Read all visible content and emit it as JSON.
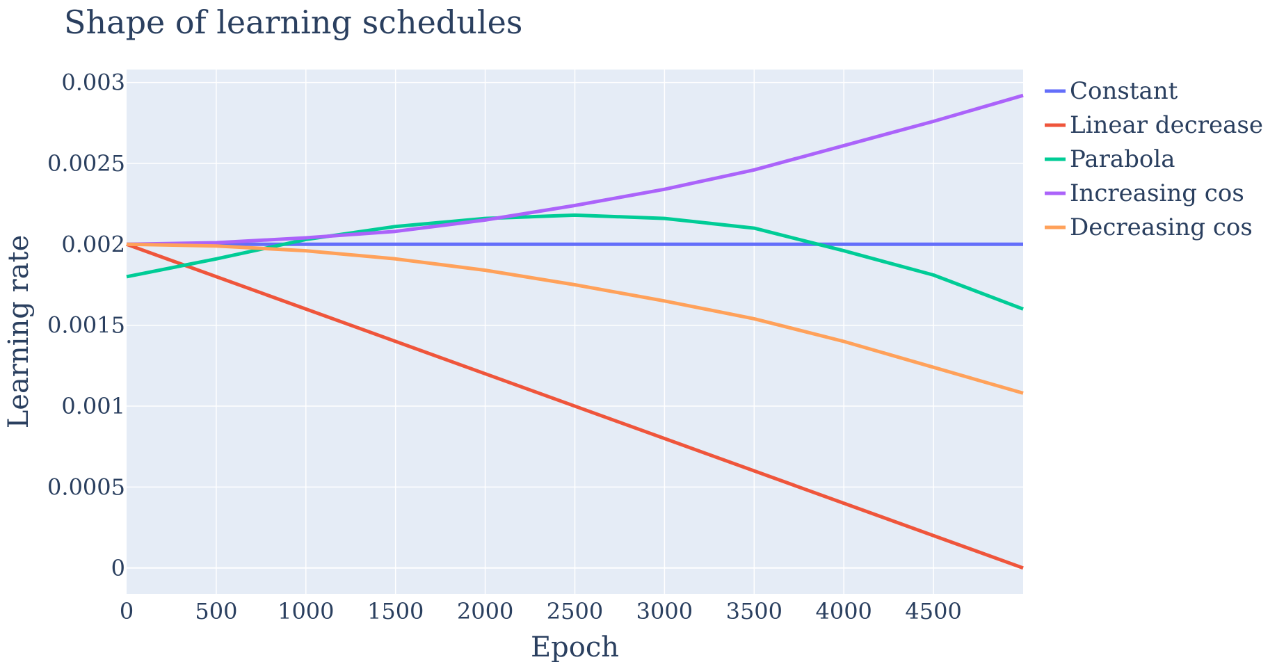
{
  "chart_data": {
    "type": "line",
    "title": "Shape of learning schedules",
    "xlabel": "Epoch",
    "ylabel": "Learning rate",
    "xlim": [
      0,
      5000
    ],
    "ylim": [
      -0.00016,
      0.00308
    ],
    "x_ticks": [
      0,
      500,
      1000,
      1500,
      2000,
      2500,
      3000,
      3500,
      4000,
      4500
    ],
    "x_tick_labels": [
      "0",
      "500",
      "1000",
      "1500",
      "2000",
      "2500",
      "3000",
      "3500",
      "4000",
      "4500"
    ],
    "y_ticks": [
      0,
      0.0005,
      0.001,
      0.0015,
      0.002,
      0.0025,
      0.003
    ],
    "y_tick_labels": [
      "0",
      "0.0005",
      "0.001",
      "0.0015",
      "0.002",
      "0.0025",
      "0.003"
    ],
    "grid": true,
    "legend_position": "top-right outside",
    "plot_background": "#e5ecf6",
    "series": [
      {
        "name": "Constant",
        "color": "#636efa",
        "x": [
          0,
          5000
        ],
        "y": [
          0.002,
          0.002
        ]
      },
      {
        "name": "Linear decrease",
        "color": "#ef553b",
        "x": [
          0,
          5000
        ],
        "y": [
          0.002,
          0.0
        ]
      },
      {
        "name": "Parabola",
        "color": "#00cc96",
        "x": [
          0,
          500,
          1000,
          1500,
          2000,
          2500,
          3000,
          3500,
          4000,
          4500,
          5000
        ],
        "y": [
          0.0018,
          0.00191,
          0.00203,
          0.00211,
          0.00216,
          0.00218,
          0.00216,
          0.0021,
          0.00196,
          0.00181,
          0.0016
        ]
      },
      {
        "name": "Increasing cos",
        "color": "#ab63fa",
        "x": [
          0,
          500,
          1000,
          1500,
          2000,
          2500,
          3000,
          3500,
          4000,
          4500,
          5000
        ],
        "y": [
          0.002,
          0.00201,
          0.00204,
          0.00208,
          0.00215,
          0.00224,
          0.00234,
          0.00246,
          0.00261,
          0.00276,
          0.00292
        ]
      },
      {
        "name": "Decreasing cos",
        "color": "#ffa15a",
        "x": [
          0,
          500,
          1000,
          1500,
          2000,
          2500,
          3000,
          3500,
          4000,
          4500,
          5000
        ],
        "y": [
          0.002,
          0.00199,
          0.00196,
          0.00191,
          0.00184,
          0.00175,
          0.00165,
          0.00154,
          0.0014,
          0.00124,
          0.00108
        ]
      }
    ]
  }
}
